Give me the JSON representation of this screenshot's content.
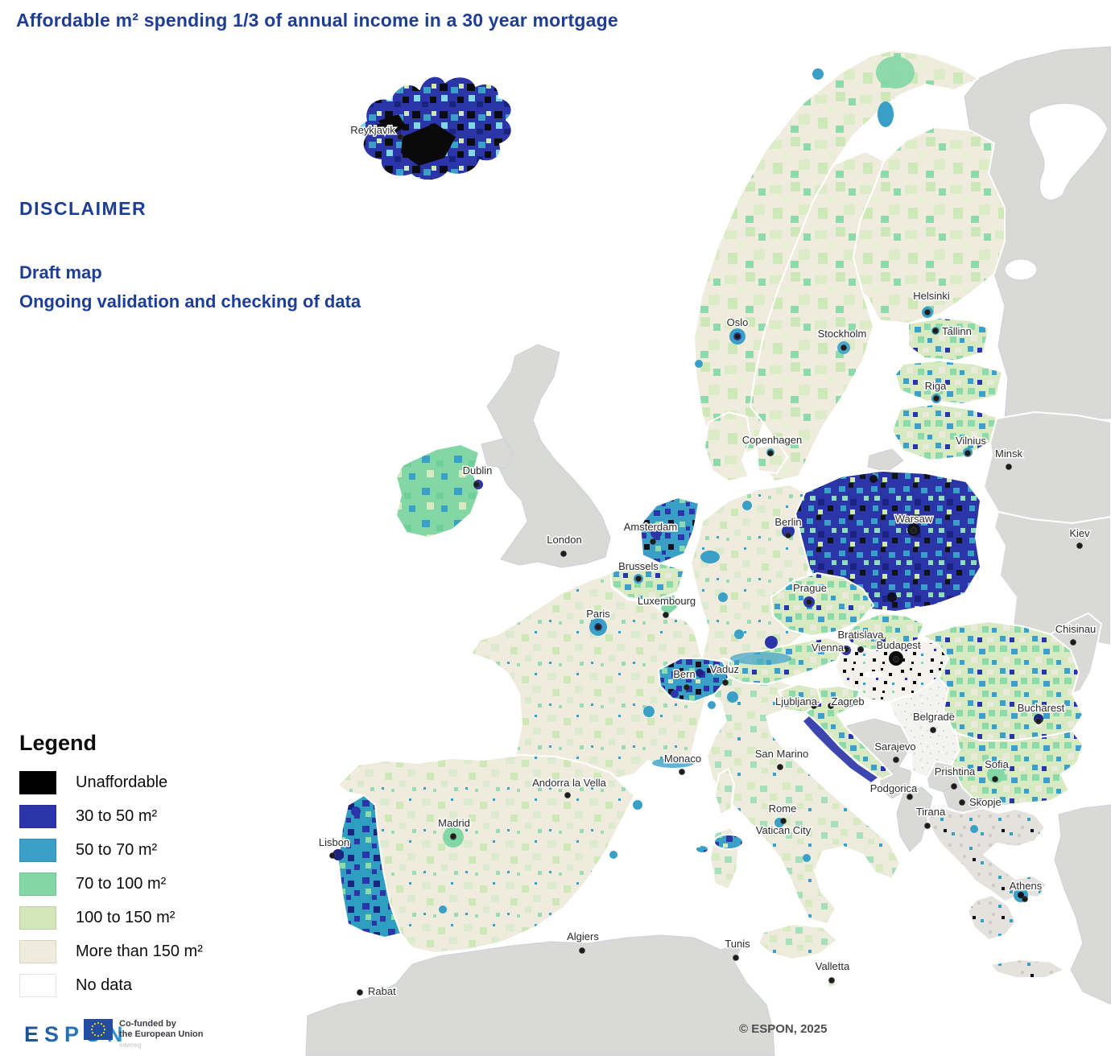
{
  "title": "Affordable m² spending 1/3 of annual income in a 30 year mortgage",
  "disclaimer": {
    "heading": "DISCLAIMER",
    "line1": "Draft map",
    "line2": "Ongoing validation and checking of data"
  },
  "legend": {
    "title": "Legend",
    "items": [
      {
        "label": "Unaffordable",
        "color": "#000000"
      },
      {
        "label": "30 to 50 m²",
        "color": "#2c35a7"
      },
      {
        "label": "50 to 70 m²",
        "color": "#3aa0c8"
      },
      {
        "label": "70 to 100 m²",
        "color": "#82d7a5"
      },
      {
        "label": "100 to 150 m²",
        "color": "#d2e8ba"
      },
      {
        "label": "More than 150  m²",
        "color": "#f0ecdd"
      },
      {
        "label": "No data",
        "color": "#ffffff"
      }
    ]
  },
  "attribution": {
    "logo_text": "ESPON",
    "eu_badge_line1": "Co-funded by",
    "eu_badge_line2": "the European Union",
    "eu_badge_sub": "Interreg",
    "copyright": "© ESPON, 2025"
  },
  "map": {
    "cities": [
      {
        "id": "reykjavik",
        "name": "Reykjavik",
        "label": [
          463,
          166
        ],
        "dot": [
          497,
          170
        ]
      },
      {
        "id": "oslo",
        "name": "Oslo",
        "label": [
          916,
          405
        ],
        "dot": [
          916,
          418
        ]
      },
      {
        "id": "stockholm",
        "name": "Stockholm",
        "label": [
          1046,
          419
        ],
        "dot": [
          1048,
          432
        ]
      },
      {
        "id": "helsinki",
        "name": "Helsinki",
        "label": [
          1157,
          372
        ],
        "dot": [
          1152,
          388
        ]
      },
      {
        "id": "tallinn",
        "name": "Tallinn",
        "label": [
          1170,
          416
        ],
        "dot": [
          1162,
          411
        ],
        "anchor": "start"
      },
      {
        "id": "riga",
        "name": "Riga",
        "label": [
          1162,
          484
        ],
        "dot": [
          1163,
          495
        ]
      },
      {
        "id": "copenhagen",
        "name": "Copenhagen",
        "label": [
          959,
          551
        ],
        "dot": [
          957,
          563
        ]
      },
      {
        "id": "vilnius",
        "name": "Vilnius",
        "label": [
          1206,
          552
        ],
        "dot": [
          1202,
          563
        ]
      },
      {
        "id": "minsk",
        "name": "Minsk",
        "label": [
          1253,
          568
        ],
        "dot": [
          1253,
          580
        ]
      },
      {
        "id": "kiev",
        "name": "Kiev",
        "label": [
          1341,
          667
        ],
        "dot": [
          1341,
          678
        ]
      },
      {
        "id": "dublin",
        "name": "Dublin",
        "label": [
          593,
          589
        ],
        "dot": [
          592,
          602
        ]
      },
      {
        "id": "london",
        "name": "London",
        "label": [
          701,
          675
        ],
        "dot": [
          700,
          688
        ]
      },
      {
        "id": "amsterdam",
        "name": "Amsterdam",
        "label": [
          808,
          659
        ],
        "dot": [
          811,
          673
        ]
      },
      {
        "id": "berlin",
        "name": "Berlin",
        "label": [
          979,
          653
        ],
        "dot": [
          979,
          665
        ]
      },
      {
        "id": "warsaw",
        "name": "Warsaw",
        "label": [
          1135,
          649
        ],
        "dot": [
          1135,
          659
        ]
      },
      {
        "id": "brussels",
        "name": "Brussels",
        "label": [
          793,
          708
        ],
        "dot": [
          793,
          719
        ]
      },
      {
        "id": "luxembourg",
        "name": "Luxembourg",
        "label": [
          828,
          751
        ],
        "dot": [
          827,
          764
        ]
      },
      {
        "id": "paris",
        "name": "Paris",
        "label": [
          743,
          767
        ],
        "dot": [
          743,
          779
        ]
      },
      {
        "id": "prague",
        "name": "Prague",
        "label": [
          1006,
          735
        ],
        "dot": [
          1005,
          748
        ]
      },
      {
        "id": "bratislava",
        "name": "Bratislava",
        "label": [
          1069,
          793
        ],
        "dot": [
          1069,
          807
        ]
      },
      {
        "id": "vienna",
        "name": "Vienna",
        "label": [
          1028,
          809
        ],
        "dot": [
          1051,
          807
        ]
      },
      {
        "id": "budapest",
        "name": "Budapest",
        "label": [
          1116,
          806
        ],
        "dot": [
          1113,
          819
        ]
      },
      {
        "id": "chisinau",
        "name": "Chisinau",
        "label": [
          1336,
          786
        ],
        "dot": [
          1333,
          798
        ]
      },
      {
        "id": "bern",
        "name": "Bern",
        "label": [
          850,
          842
        ],
        "dot": [
          853,
          854
        ]
      },
      {
        "id": "vaduz",
        "name": "Vaduz",
        "label": [
          900,
          836
        ],
        "dot": [
          901,
          848
        ]
      },
      {
        "id": "ljubljana",
        "name": "Ljubljana",
        "label": [
          989,
          876
        ],
        "dot": [
          1011,
          877
        ]
      },
      {
        "id": "zagreb",
        "name": "Zagreb",
        "label": [
          1053,
          876
        ],
        "dot": [
          1032,
          877
        ]
      },
      {
        "id": "belgrade",
        "name": "Belgrade",
        "label": [
          1160,
          895
        ],
        "dot": [
          1159,
          907
        ]
      },
      {
        "id": "sarajevo",
        "name": "Sarajevo",
        "label": [
          1112,
          932
        ],
        "dot": [
          1113,
          944
        ]
      },
      {
        "id": "bucharest",
        "name": "Bucharest",
        "label": [
          1293,
          884
        ],
        "dot": [
          1290,
          896
        ]
      },
      {
        "id": "monaco",
        "name": "Monaco",
        "label": [
          848,
          947
        ],
        "dot": [
          847,
          959
        ]
      },
      {
        "id": "san-marino",
        "name": "San Marino",
        "label": [
          971,
          941
        ],
        "dot": [
          969,
          953
        ]
      },
      {
        "id": "madrid",
        "name": "Madrid",
        "label": [
          564,
          1027
        ],
        "dot": [
          563,
          1039
        ]
      },
      {
        "id": "andorra",
        "name": "Andorra la Vella",
        "label": [
          707,
          977
        ],
        "dot": [
          705,
          988
        ]
      },
      {
        "id": "lisbon",
        "name": "Lisbon",
        "label": [
          415,
          1051
        ],
        "dot": [
          413,
          1063
        ]
      },
      {
        "id": "rome",
        "name": "Rome",
        "label": [
          972,
          1009
        ],
        "dot": [
          973,
          1020
        ]
      },
      {
        "id": "vatican",
        "name": "Vatican City",
        "label": [
          973,
          1036
        ]
      },
      {
        "id": "podgorica",
        "name": "Podgorica",
        "label": [
          1110,
          984
        ],
        "dot": [
          1130,
          990
        ]
      },
      {
        "id": "prishtina",
        "name": "Prishtina",
        "label": [
          1186,
          963
        ],
        "dot": [
          1185,
          977
        ]
      },
      {
        "id": "sofia",
        "name": "Sofia",
        "label": [
          1238,
          954
        ],
        "dot": [
          1236,
          968
        ]
      },
      {
        "id": "skopje",
        "name": "Skopje",
        "label": [
          1204,
          1001
        ],
        "dot": [
          1195,
          997
        ],
        "anchor": "start"
      },
      {
        "id": "tirana",
        "name": "Tirana",
        "label": [
          1156,
          1013
        ],
        "dot": [
          1152,
          1026
        ]
      },
      {
        "id": "athens",
        "name": "Athens",
        "label": [
          1274,
          1105
        ],
        "dot": [
          1273,
          1117
        ]
      },
      {
        "id": "algiers",
        "name": "Algiers",
        "label": [
          724,
          1168
        ],
        "dot": [
          723,
          1181
        ]
      },
      {
        "id": "tunis",
        "name": "Tunis",
        "label": [
          916,
          1177
        ],
        "dot": [
          914,
          1190
        ]
      },
      {
        "id": "valletta",
        "name": "Valletta",
        "label": [
          1034,
          1205
        ],
        "dot": [
          1033,
          1218
        ]
      },
      {
        "id": "rabat",
        "name": "Rabat",
        "label": [
          457,
          1236
        ],
        "dot": [
          447,
          1233
        ],
        "anchor": "start"
      }
    ]
  }
}
